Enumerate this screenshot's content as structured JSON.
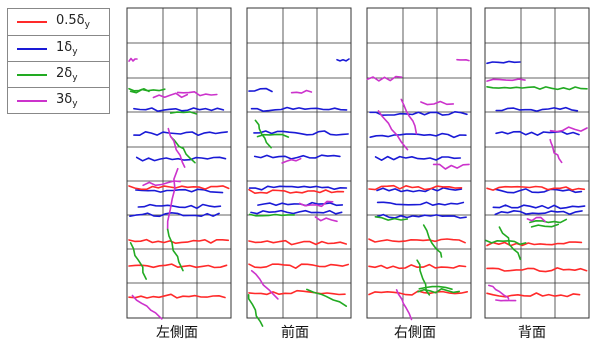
{
  "legend": {
    "items": [
      {
        "label": "0.5δ",
        "sub": "y",
        "color": "#ff2a2a"
      },
      {
        "label": "1δ",
        "sub": "y",
        "color": "#1a1ad6"
      },
      {
        "label": "2δ",
        "sub": "y",
        "color": "#22aa22"
      },
      {
        "label": "3δ",
        "sub": "y",
        "color": "#cc33cc"
      }
    ]
  },
  "panels": [
    {
      "label": "左側面"
    },
    {
      "label": "前面"
    },
    {
      "label": "右側面"
    },
    {
      "label": "背面"
    }
  ]
}
